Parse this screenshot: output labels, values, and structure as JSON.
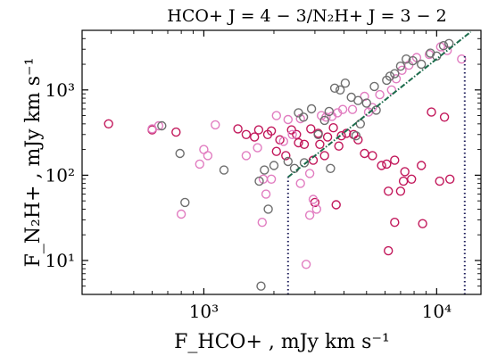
{
  "chart_data": {
    "type": "scatter",
    "title": "HCO+ J = 4 − 3/N₂H+ J = 3 − 2",
    "xlabel": "F_HCO+ , mJy km s⁻¹",
    "ylabel": "F_N₂H+ , mJy km s⁻¹",
    "xscale": "log",
    "yscale": "log",
    "xlim": [
      300,
      15500
    ],
    "ylim": [
      4,
      5000
    ],
    "xticks": [
      {
        "value": 1000,
        "label": "10³"
      },
      {
        "value": 10000,
        "label": "10⁴"
      }
    ],
    "yticks": [
      {
        "value": 10,
        "label": "10¹"
      },
      {
        "value": 100,
        "label": "10²"
      },
      {
        "value": 1000,
        "label": "10³"
      }
    ],
    "grid": false,
    "marker": "open-circle",
    "series": [
      {
        "color": "#c2185b",
        "points": [
          [
            390,
            400
          ],
          [
            600,
            340
          ],
          [
            760,
            320
          ],
          [
            1400,
            350
          ],
          [
            1520,
            300
          ],
          [
            1650,
            280
          ],
          [
            1720,
            340
          ],
          [
            1880,
            300
          ],
          [
            1950,
            330
          ],
          [
            2120,
            260
          ],
          [
            2380,
            340
          ],
          [
            2500,
            300
          ],
          [
            2700,
            230
          ],
          [
            2880,
            350
          ],
          [
            3100,
            310
          ],
          [
            3400,
            280
          ],
          [
            3600,
            360
          ],
          [
            3900,
            290
          ],
          [
            4100,
            310
          ],
          [
            4400,
            300
          ],
          [
            4600,
            260
          ],
          [
            4900,
            180
          ],
          [
            3800,
            220
          ],
          [
            3300,
            170
          ],
          [
            2950,
            150
          ],
          [
            3150,
            230
          ],
          [
            2550,
            240
          ],
          [
            2250,
            170
          ],
          [
            2050,
            190
          ],
          [
            5300,
            170
          ],
          [
            5800,
            130
          ],
          [
            6100,
            135
          ],
          [
            6600,
            150
          ],
          [
            7300,
            110
          ],
          [
            7800,
            90
          ],
          [
            8600,
            130
          ],
          [
            9500,
            550
          ],
          [
            10800,
            480
          ],
          [
            10300,
            85
          ],
          [
            11400,
            90
          ],
          [
            7200,
            85
          ],
          [
            7000,
            65
          ],
          [
            6200,
            65
          ],
          [
            6600,
            28
          ],
          [
            8700,
            27
          ],
          [
            3700,
            45
          ],
          [
            3000,
            48
          ],
          [
            6200,
            13
          ]
        ]
      },
      {
        "color": "#e17cc0",
        "points": [
          [
            640,
            380
          ],
          [
            600,
            350
          ],
          [
            1000,
            200
          ],
          [
            1040,
            170
          ],
          [
            960,
            135
          ],
          [
            800,
            35
          ],
          [
            1120,
            390
          ],
          [
            1520,
            170
          ],
          [
            1700,
            210
          ],
          [
            1800,
            90
          ],
          [
            1950,
            90
          ],
          [
            1850,
            60
          ],
          [
            1780,
            28
          ],
          [
            2050,
            500
          ],
          [
            2300,
            450
          ],
          [
            2600,
            460
          ],
          [
            3200,
            500
          ],
          [
            3350,
            480
          ],
          [
            3550,
            490
          ],
          [
            3750,
            540
          ],
          [
            2850,
            105
          ],
          [
            2600,
            80
          ],
          [
            2950,
            52
          ],
          [
            3050,
            40
          ],
          [
            2850,
            34
          ],
          [
            2750,
            9
          ],
          [
            4350,
            590
          ],
          [
            4900,
            840
          ],
          [
            5300,
            620
          ],
          [
            5700,
            880
          ],
          [
            6400,
            1000
          ],
          [
            6700,
            1350
          ],
          [
            7100,
            1700
          ],
          [
            7600,
            1950
          ],
          [
            8200,
            2400
          ],
          [
            9300,
            2600
          ],
          [
            10400,
            3200
          ],
          [
            11100,
            2900
          ],
          [
            12800,
            2300
          ],
          [
            5100,
            550
          ],
          [
            3950,
            590
          ],
          [
            2400,
            300
          ],
          [
            2200,
            250
          ]
        ]
      },
      {
        "color": "#6e6e6e",
        "points": [
          [
            660,
            380
          ],
          [
            790,
            180
          ],
          [
            830,
            48
          ],
          [
            1220,
            115
          ],
          [
            1730,
            85
          ],
          [
            1820,
            115
          ],
          [
            1760,
            5
          ],
          [
            1890,
            40
          ],
          [
            2000,
            130
          ],
          [
            2300,
            145
          ],
          [
            2450,
            120
          ],
          [
            2550,
            540
          ],
          [
            2680,
            480
          ],
          [
            2900,
            600
          ],
          [
            3100,
            300
          ],
          [
            3300,
            440
          ],
          [
            3450,
            560
          ],
          [
            3650,
            1050
          ],
          [
            3850,
            1000
          ],
          [
            4050,
            1200
          ],
          [
            4300,
            820
          ],
          [
            4600,
            750
          ],
          [
            5000,
            700
          ],
          [
            5500,
            580
          ],
          [
            6100,
            1300
          ],
          [
            6600,
            1550
          ],
          [
            7000,
            1900
          ],
          [
            7400,
            2300
          ],
          [
            7900,
            2200
          ],
          [
            8600,
            2000
          ],
          [
            9400,
            2700
          ],
          [
            10000,
            2500
          ],
          [
            10700,
            3300
          ],
          [
            11300,
            3500
          ],
          [
            6300,
            1450
          ],
          [
            5400,
            1100
          ],
          [
            4700,
            400
          ],
          [
            4500,
            290
          ],
          [
            3500,
            120
          ],
          [
            2700,
            140
          ]
        ]
      }
    ],
    "reference_lines": [
      {
        "style": "dotted",
        "color": "#1f1f5c",
        "from": [
          2300,
          4
        ],
        "to": [
          2300,
          95
        ]
      },
      {
        "style": "dotted",
        "color": "#1f1f5c",
        "from": [
          13200,
          4
        ],
        "to": [
          13200,
          2600
        ]
      },
      {
        "style": "dashed-dotted",
        "color": "#1b6b4b",
        "from": [
          2300,
          95
        ],
        "to": [
          14000,
          4800
        ]
      }
    ]
  }
}
